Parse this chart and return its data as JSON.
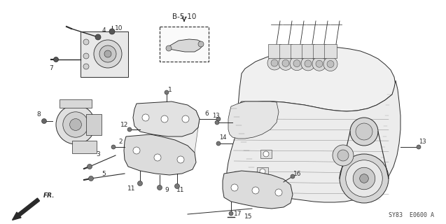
{
  "bg_color": "#ffffff",
  "line_color": "#2a2a2a",
  "fig_width": 6.37,
  "fig_height": 3.2,
  "dpi": 100,
  "watermark": "SY83  E0600 A",
  "ref_label": "B-5-10"
}
